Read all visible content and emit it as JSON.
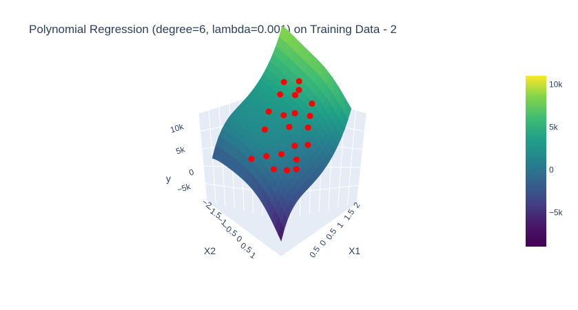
{
  "chart_data": {
    "type": "surface3d",
    "title": "Polynomial Regression (degree=6, lambda=0.001) on Training Data - 2",
    "xlabel": "X1",
    "ylabel": "X2",
    "zlabel": "y",
    "x_ticks": [
      "−2",
      "−1.5",
      "−1",
      "−0.5",
      "0",
      "0.5",
      "1"
    ],
    "x_tick_suffix": [
      "2",
      "1.5",
      "1",
      "0.5",
      "0",
      "0.5",
      "1"
    ],
    "x_ticks_visible": [
      "2",
      "1.5",
      "1",
      "0.5",
      "0",
      "0.5"
    ],
    "y_ticks": [
      "−2",
      "−1.5",
      "−1",
      "−0.5",
      "0",
      "0.5",
      "1"
    ],
    "z_ticks": [
      "10k",
      "5k",
      "0",
      "−5k"
    ],
    "z_range": [
      -6000,
      11000
    ],
    "colorbar": {
      "colorscale": "Viridis",
      "range": [
        -9000,
        11000
      ],
      "ticks": [
        "10k",
        "5k",
        "0",
        "−5k"
      ],
      "tick_values": [
        10000,
        5000,
        0,
        -5000
      ]
    },
    "scatter_color": "#ff0000",
    "points": [
      {
        "x1": -1.6,
        "x2": -1.2,
        "y": 1200
      },
      {
        "x1": -1.2,
        "x2": -1.5,
        "y": 900
      },
      {
        "x1": -1.0,
        "x2": -1.0,
        "y": 1800
      },
      {
        "x1": -0.8,
        "x2": -1.6,
        "y": 500
      },
      {
        "x1": -0.5,
        "x2": -1.3,
        "y": 700
      },
      {
        "x1": -1.4,
        "x2": -0.6,
        "y": 1500
      },
      {
        "x1": -0.2,
        "x2": -0.9,
        "y": 1300
      },
      {
        "x1": 0.0,
        "x2": -0.4,
        "y": 2600
      },
      {
        "x1": 0.3,
        "x2": -1.1,
        "y": 900
      },
      {
        "x1": 0.5,
        "x2": -0.2,
        "y": 3200
      },
      {
        "x1": 0.7,
        "x2": -0.7,
        "y": 1800
      },
      {
        "x1": 0.9,
        "x2": 0.2,
        "y": 4200
      },
      {
        "x1": 1.1,
        "x2": -0.4,
        "y": 2100
      },
      {
        "x1": 1.3,
        "x2": 0.4,
        "y": 3800
      },
      {
        "x1": 1.5,
        "x2": -0.1,
        "y": 2500
      },
      {
        "x1": -0.6,
        "x2": 0.3,
        "y": 2000
      },
      {
        "x1": -0.1,
        "x2": 0.6,
        "y": 3000
      },
      {
        "x1": 0.2,
        "x2": 0.1,
        "y": 2900
      },
      {
        "x1": 1.7,
        "x2": 0.8,
        "y": 3500
      },
      {
        "x1": -1.8,
        "x2": -0.2,
        "y": 1100
      },
      {
        "x1": 0.6,
        "x2": 0.7,
        "y": 3900
      },
      {
        "x1": 1.0,
        "x2": 0.9,
        "y": 4500
      }
    ]
  }
}
